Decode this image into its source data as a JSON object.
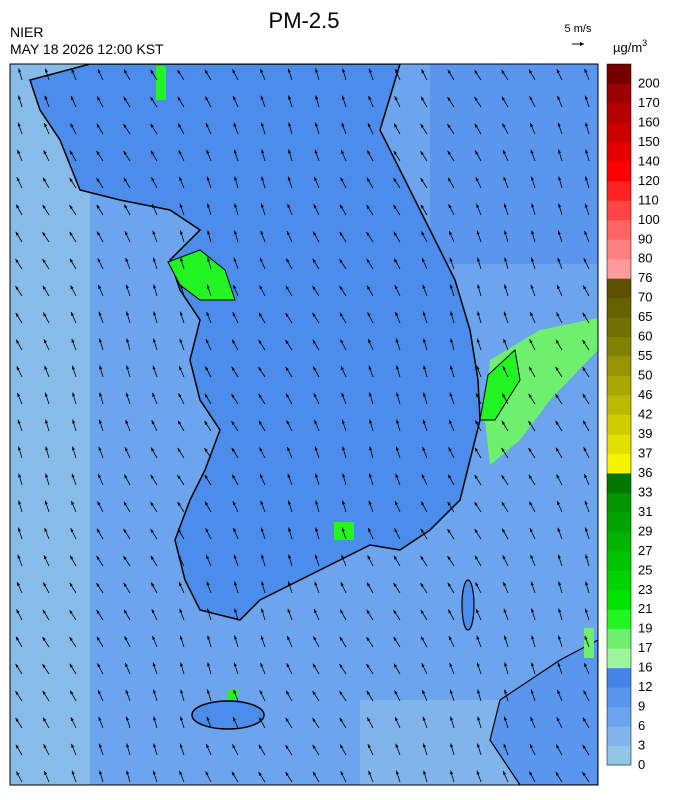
{
  "header": {
    "title": "PM-2.5",
    "agency": "NIER",
    "datetime": "MAY 18 2026 12:00 KST"
  },
  "wind_legend": {
    "label": "5 m/s"
  },
  "colorbar": {
    "unit": "µg/m",
    "unit_exponent": "3",
    "levels": [
      0,
      3,
      6,
      9,
      12,
      16,
      17,
      19,
      21,
      23,
      25,
      27,
      29,
      31,
      33,
      36,
      37,
      39,
      42,
      46,
      50,
      55,
      60,
      65,
      70,
      76,
      80,
      90,
      100,
      110,
      120,
      140,
      150,
      160,
      170,
      200
    ],
    "colors": [
      "#93c5e6",
      "#80b4ea",
      "#6ca4ee",
      "#5a95ee",
      "#4585ea",
      "#9cf79c",
      "#6ef06e",
      "#22f522",
      "#00e400",
      "#00d400",
      "#00c400",
      "#00b400",
      "#00a400",
      "#009400",
      "#007800",
      "#f5f500",
      "#e2e000",
      "#cfcd00",
      "#bcba00",
      "#a9a700",
      "#969400",
      "#838100",
      "#727000",
      "#666200",
      "#5c5200",
      "#ff9a9a",
      "#ff8080",
      "#ff6464",
      "#ff4444",
      "#ff2222",
      "#ff0000",
      "#e40000",
      "#cc0000",
      "#b40000",
      "#9c0000",
      "#760000"
    ]
  }
}
